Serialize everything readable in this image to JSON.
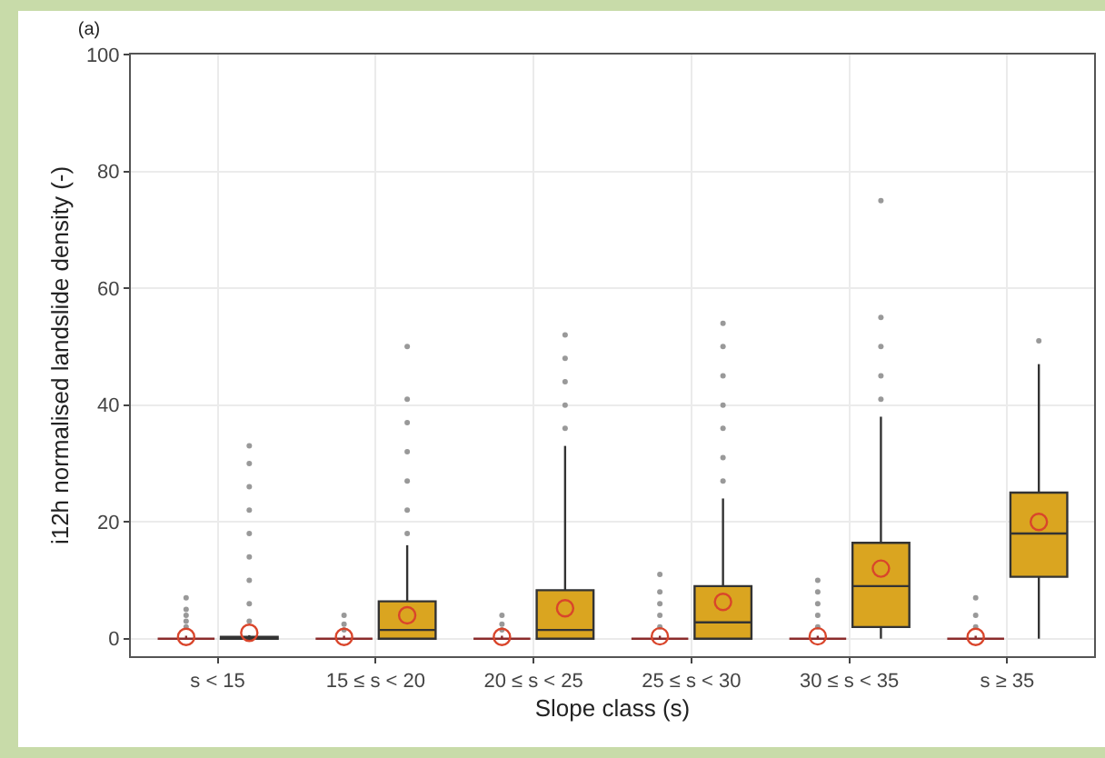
{
  "chart_data": {
    "type": "box",
    "title": "(a)",
    "xlabel": "Slope class (s)",
    "ylabel": "i12h normalised landslide density (-)",
    "categories": [
      "s < 15",
      "15 ≤ s < 20",
      "20 ≤ s < 25",
      "25 ≤ s < 30",
      "30 ≤ s < 35",
      "s ≥ 35"
    ],
    "ylim": [
      -3,
      100
    ],
    "yticks": [
      0,
      20,
      40,
      60,
      80,
      100
    ],
    "grid": true,
    "series": [
      {
        "color": "#8b2c2c",
        "boxes": [
          {
            "low": 0,
            "q1": 0,
            "median": 0,
            "q3": 0,
            "high": 0.5,
            "mean": 0.3,
            "outliers": [
              2,
              3,
              4,
              5,
              7
            ]
          },
          {
            "low": 0,
            "q1": 0,
            "median": 0,
            "q3": 0,
            "high": 0.5,
            "mean": 0.3,
            "outliers": [
              1.5,
              2.5,
              4
            ]
          },
          {
            "low": 0,
            "q1": 0,
            "median": 0,
            "q3": 0,
            "high": 0.5,
            "mean": 0.3,
            "outliers": [
              1.5,
              2.5,
              4
            ]
          },
          {
            "low": 0,
            "q1": 0,
            "median": 0,
            "q3": 0,
            "high": 0.5,
            "mean": 0.4,
            "outliers": [
              2,
              4,
              6,
              8,
              11
            ]
          },
          {
            "low": 0,
            "q1": 0,
            "median": 0,
            "q3": 0,
            "high": 0.5,
            "mean": 0.4,
            "outliers": [
              2,
              4,
              6,
              8,
              10
            ]
          },
          {
            "low": 0,
            "q1": 0,
            "median": 0,
            "q3": 0,
            "high": 0.5,
            "mean": 0.3,
            "outliers": [
              2,
              4,
              7
            ]
          }
        ]
      },
      {
        "color": "#daa520",
        "boxes": [
          {
            "low": 0,
            "q1": 0,
            "median": 0,
            "q3": 0.3,
            "high": 0.6,
            "mean": 1,
            "outliers": [
              3,
              6,
              10,
              14,
              18,
              22,
              26,
              30,
              33
            ]
          },
          {
            "low": 0,
            "q1": 0,
            "median": 1.5,
            "q3": 6.4,
            "high": 16,
            "mean": 4,
            "outliers": [
              18,
              22,
              27,
              32,
              37,
              41,
              50
            ]
          },
          {
            "low": 0,
            "q1": 0,
            "median": 1.5,
            "q3": 8.3,
            "high": 33,
            "mean": 5.2,
            "outliers": [
              36,
              40,
              44,
              48,
              52
            ]
          },
          {
            "low": 0,
            "q1": 0,
            "median": 2.8,
            "q3": 9,
            "high": 24,
            "mean": 6.3,
            "outliers": [
              27,
              31,
              36,
              40,
              45,
              50,
              54
            ]
          },
          {
            "low": 0,
            "q1": 2,
            "median": 9,
            "q3": 16.4,
            "high": 38,
            "mean": 12,
            "outliers": [
              41,
              45,
              50,
              55,
              75
            ]
          },
          {
            "low": 0,
            "q1": 10.6,
            "median": 18,
            "q3": 25,
            "high": 47,
            "mean": 20,
            "outliers": [
              51
            ]
          }
        ]
      }
    ]
  }
}
